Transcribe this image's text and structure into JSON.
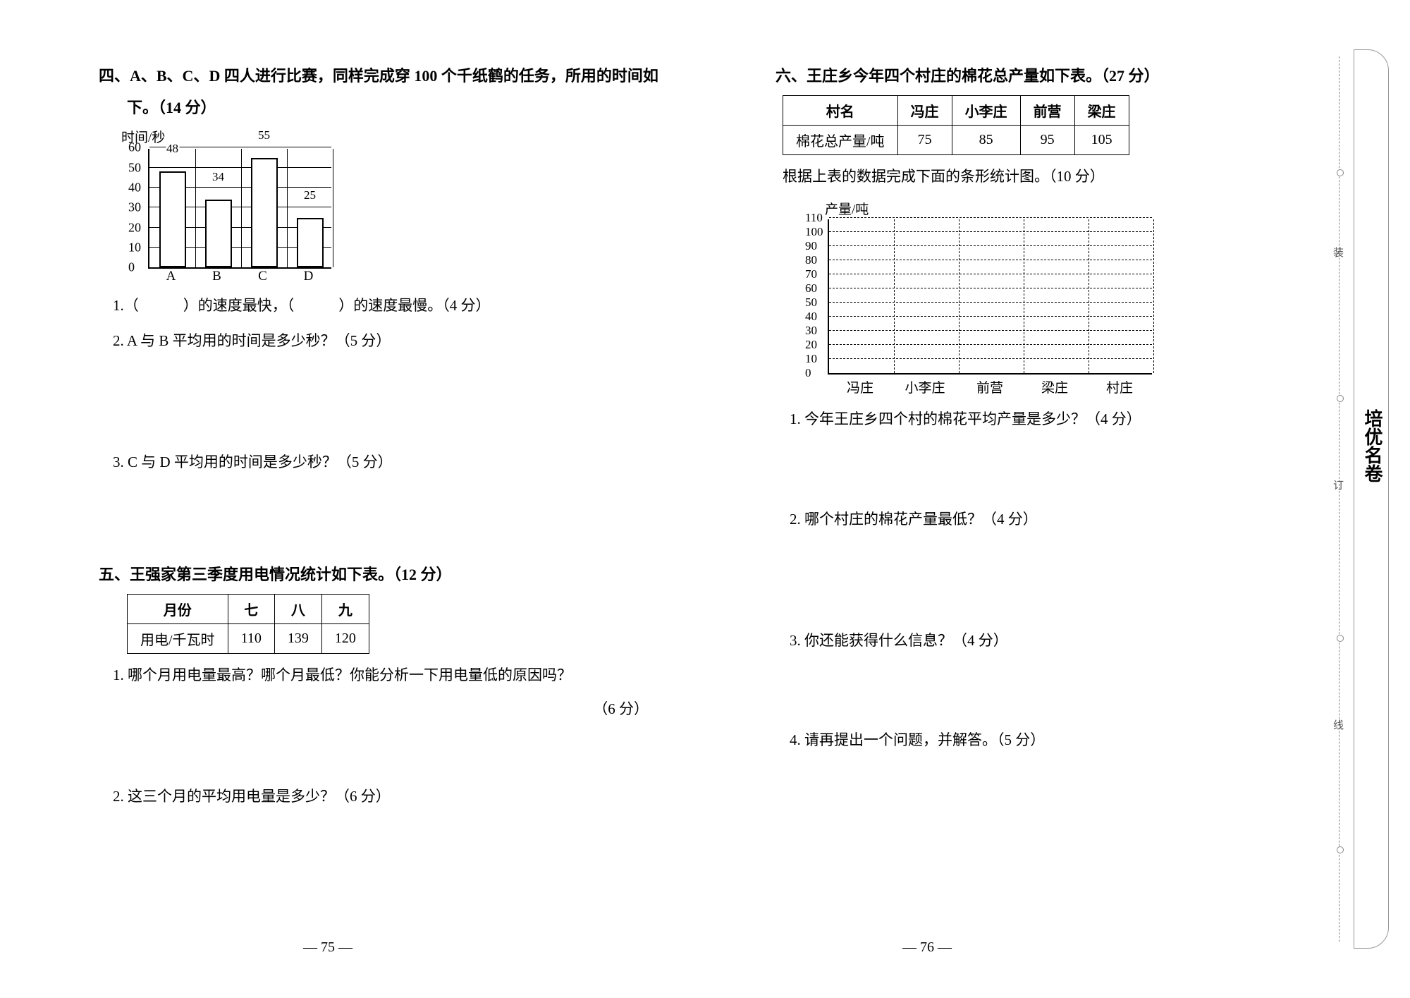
{
  "section4": {
    "title": "四、A、B、C、D 四人进行比赛，同样完成穿 100 个千纸鹤的任务，所用的时间如",
    "title_cont": "下。（14 分）",
    "chart": {
      "type": "bar",
      "ylabel": "时间/秒",
      "categories": [
        "A",
        "B",
        "C",
        "D"
      ],
      "values": [
        48,
        34,
        55,
        25
      ],
      "ylim": [
        0,
        60
      ],
      "ytick_step": 10,
      "bar_color": "#ffffff",
      "border_color": "#000000"
    },
    "q1": "1.（　　　）的速度最快，（　　　）的速度最慢。（4 分）",
    "q2": "2. A 与 B 平均用的时间是多少秒？（5 分）",
    "q3": "3. C 与 D 平均用的时间是多少秒？（5 分）"
  },
  "section5": {
    "title": "五、王强家第三季度用电情况统计如下表。（12 分）",
    "table": {
      "columns": [
        "月份",
        "七",
        "八",
        "九"
      ],
      "row_label": "用电/千瓦时",
      "values": [
        "110",
        "139",
        "120"
      ]
    },
    "q1": "1. 哪个月用电量最高？哪个月最低？你能分析一下用电量低的原因吗？",
    "q1_pts": "（6 分）",
    "q2": "2. 这三个月的平均用电量是多少？（6 分）"
  },
  "section6": {
    "title": "六、王庄乡今年四个村庄的棉花总产量如下表。（27 分）",
    "table": {
      "columns": [
        "村名",
        "冯庄",
        "小李庄",
        "前营",
        "梁庄"
      ],
      "row_label": "棉花总产量/吨",
      "values": [
        "75",
        "85",
        "95",
        "105"
      ]
    },
    "instr": "根据上表的数据完成下面的条形统计图。（10 分）",
    "chart": {
      "type": "bar",
      "ylabel": "产量/吨",
      "categories": [
        "冯庄",
        "小李庄",
        "前营",
        "梁庄",
        "村庄"
      ],
      "ylim": [
        0,
        110
      ],
      "ytick_step": 10,
      "grid_color": "#000000"
    },
    "q1": "1. 今年王庄乡四个村的棉花平均产量是多少？（4 分）",
    "q2": "2. 哪个村庄的棉花产量最低？（4 分）",
    "q3": "3. 你还能获得什么信息？（4 分）",
    "q4": "4. 请再提出一个问题，并解答。（5 分）"
  },
  "page_left": "— 75 —",
  "page_right": "— 76 —",
  "brand": "培优名卷",
  "cut_labels": {
    "a": "装",
    "b": "订",
    "c": "线"
  }
}
